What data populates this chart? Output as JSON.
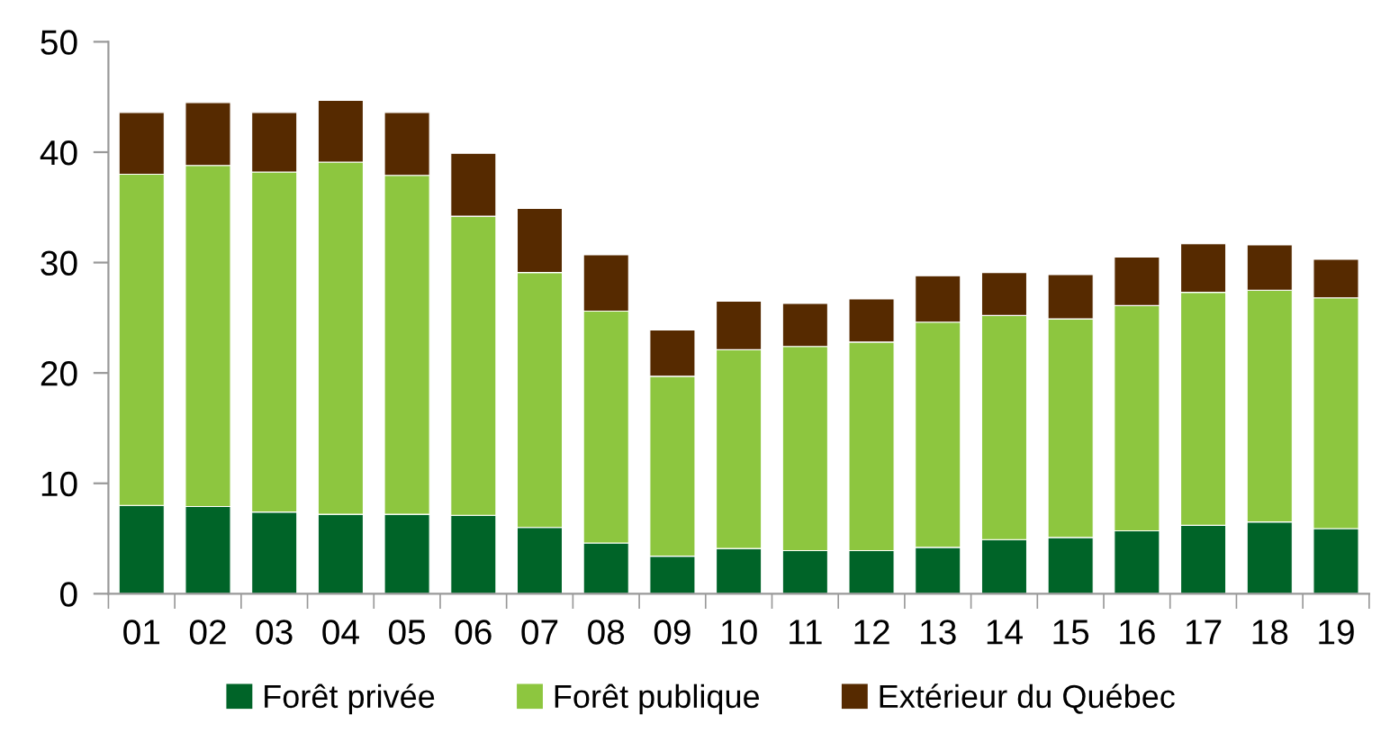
{
  "chart_data": {
    "type": "bar",
    "stacked": true,
    "categories": [
      "01",
      "02",
      "03",
      "04",
      "05",
      "06",
      "07",
      "08",
      "09",
      "10",
      "11",
      "12",
      "13",
      "14",
      "15",
      "16",
      "17",
      "18",
      "19"
    ],
    "series": [
      {
        "name": "Forêt privée",
        "color": "#006428",
        "values": [
          8.0,
          7.9,
          7.4,
          7.2,
          7.2,
          7.1,
          6.0,
          4.6,
          3.4,
          4.1,
          3.9,
          3.9,
          4.2,
          4.9,
          5.1,
          5.7,
          6.2,
          6.5,
          5.9
        ]
      },
      {
        "name": "Forêt publique",
        "color": "#8dc63f",
        "values": [
          30.0,
          30.9,
          30.8,
          31.9,
          30.7,
          27.1,
          23.1,
          21.0,
          16.3,
          18.0,
          18.5,
          18.9,
          20.4,
          20.3,
          19.8,
          20.4,
          21.1,
          21.0,
          20.9
        ]
      },
      {
        "name": "Extérieur du Québec",
        "color": "#562a00",
        "values": [
          5.6,
          5.7,
          5.4,
          5.6,
          5.7,
          5.7,
          5.8,
          5.1,
          4.2,
          4.4,
          3.9,
          3.9,
          4.2,
          3.9,
          4.0,
          4.4,
          4.4,
          4.1,
          3.5
        ]
      }
    ],
    "ylim": [
      0,
      50
    ],
    "yticks": [
      0,
      10,
      20,
      30,
      40,
      50
    ],
    "grid": false,
    "legend": "bottom"
  }
}
